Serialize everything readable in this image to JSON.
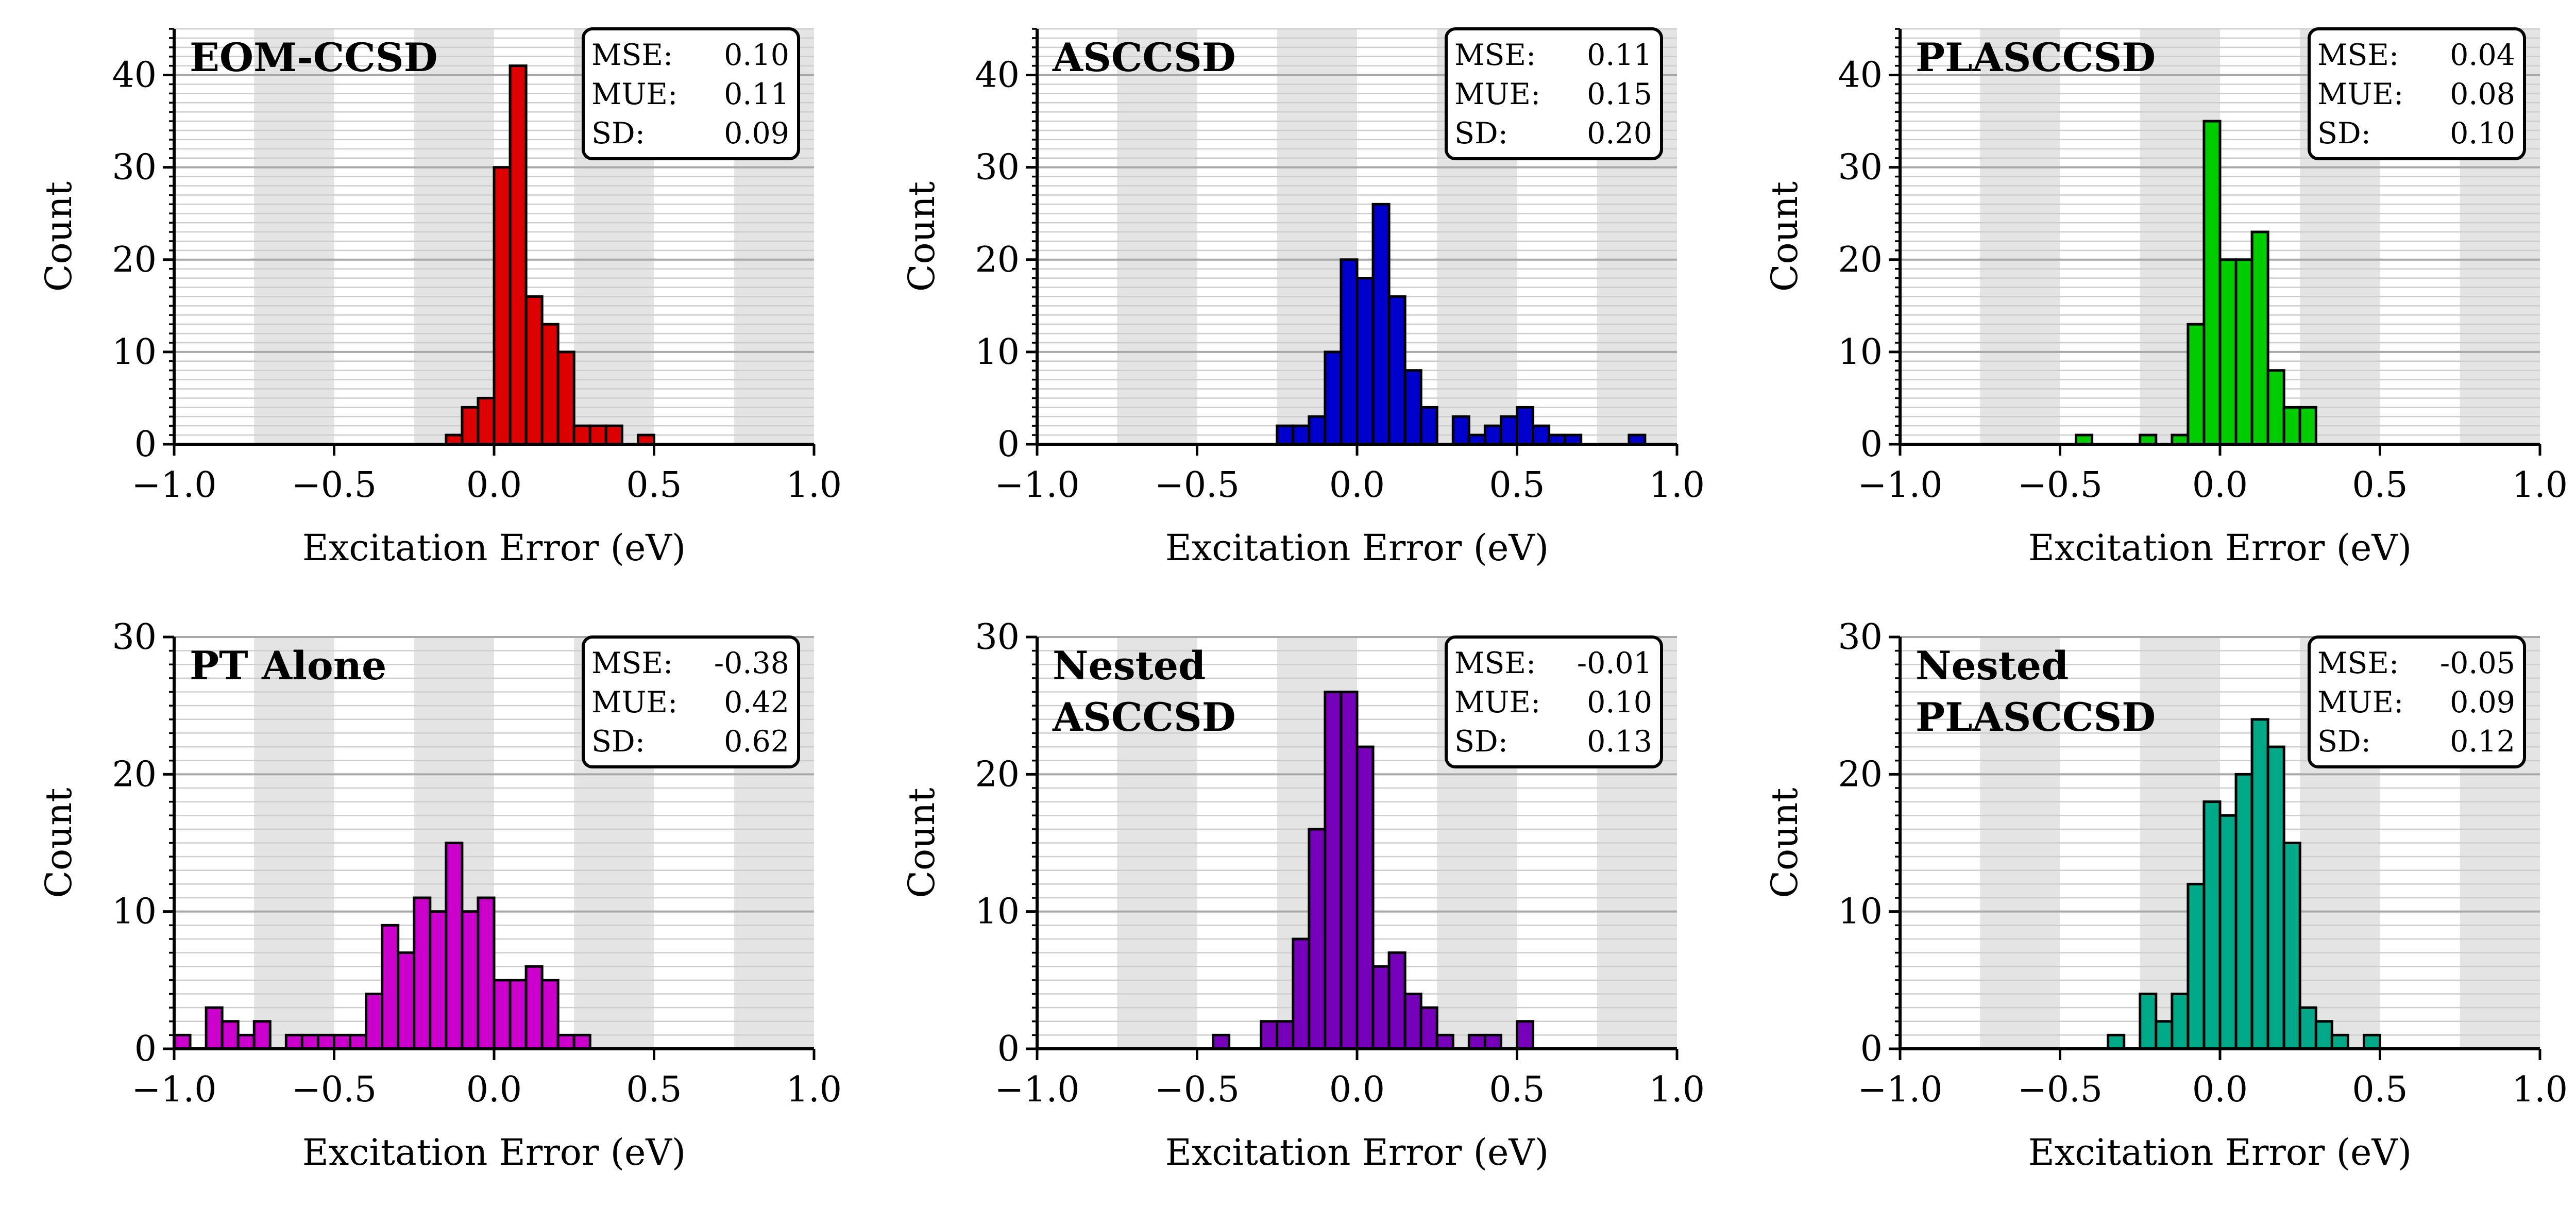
{
  "chart_data": [
    {
      "type": "bar",
      "title": "EOM-CCSD",
      "title_lines": [
        "EOM-CCSD"
      ],
      "xlabel": "Excitation Error (eV)",
      "ylabel": "Count",
      "xlim": [
        -1.0,
        1.0
      ],
      "ylim": [
        0,
        45
      ],
      "xticks": [
        "−1.0",
        "−0.5",
        "0.0",
        "0.5",
        "1.0"
      ],
      "yticks": [
        "0",
        "10",
        "20",
        "30",
        "40"
      ],
      "bin_start": -1.0,
      "bin_width": 0.05,
      "color": "#dd0000",
      "values": [
        0,
        0,
        0,
        0,
        0,
        0,
        0,
        0,
        0,
        0,
        0,
        0,
        0,
        0,
        0,
        0,
        0,
        1,
        4,
        5,
        30,
        41,
        16,
        13,
        10,
        2,
        2,
        2,
        0,
        1,
        0,
        0,
        0,
        0,
        0,
        0,
        0,
        0,
        0,
        0
      ],
      "stats": [
        {
          "label": "MSE:",
          "value": "0.10"
        },
        {
          "label": "MUE:",
          "value": "0.11"
        },
        {
          "label": "SD:",
          "value": "0.09"
        }
      ]
    },
    {
      "type": "bar",
      "title": "ASCCSD",
      "title_lines": [
        "ASCCSD"
      ],
      "xlabel": "Excitation Error (eV)",
      "ylabel": "Count",
      "xlim": [
        -1.0,
        1.0
      ],
      "ylim": [
        0,
        45
      ],
      "xticks": [
        "−1.0",
        "−0.5",
        "0.0",
        "0.5",
        "1.0"
      ],
      "yticks": [
        "0",
        "10",
        "20",
        "30",
        "40"
      ],
      "bin_start": -1.0,
      "bin_width": 0.05,
      "color": "#0000cc",
      "values": [
        0,
        0,
        0,
        0,
        0,
        0,
        0,
        0,
        0,
        0,
        0,
        0,
        0,
        0,
        0,
        2,
        2,
        3,
        10,
        20,
        18,
        26,
        16,
        8,
        4,
        0,
        3,
        1,
        2,
        3,
        4,
        2,
        1,
        1,
        0,
        0,
        0,
        1,
        0,
        0
      ],
      "stats": [
        {
          "label": "MSE:",
          "value": "0.11"
        },
        {
          "label": "MUE:",
          "value": "0.15"
        },
        {
          "label": "SD:",
          "value": "0.20"
        }
      ]
    },
    {
      "type": "bar",
      "title": "PLASCCSD",
      "title_lines": [
        "PLASCCSD"
      ],
      "xlabel": "Excitation Error (eV)",
      "ylabel": "Count",
      "xlim": [
        -1.0,
        1.0
      ],
      "ylim": [
        0,
        45
      ],
      "xticks": [
        "−1.0",
        "−0.5",
        "0.0",
        "0.5",
        "1.0"
      ],
      "yticks": [
        "0",
        "10",
        "20",
        "30",
        "40"
      ],
      "bin_start": -1.0,
      "bin_width": 0.05,
      "color": "#00cc00",
      "values": [
        0,
        0,
        0,
        0,
        0,
        0,
        0,
        0,
        0,
        0,
        0,
        1,
        0,
        0,
        0,
        1,
        0,
        1,
        13,
        35,
        20,
        20,
        23,
        8,
        4,
        4,
        0,
        0,
        0,
        0,
        0,
        0,
        0,
        0,
        0,
        0,
        0,
        0,
        0,
        0
      ],
      "stats": [
        {
          "label": "MSE:",
          "value": "0.04"
        },
        {
          "label": "MUE:",
          "value": "0.08"
        },
        {
          "label": "SD:",
          "value": "0.10"
        }
      ]
    },
    {
      "type": "bar",
      "title": "PT Alone",
      "title_lines": [
        "PT Alone"
      ],
      "xlabel": "Excitation Error (eV)",
      "ylabel": "Count",
      "xlim": [
        -1.0,
        1.0
      ],
      "ylim": [
        0,
        30
      ],
      "xticks": [
        "−1.0",
        "−0.5",
        "0.0",
        "0.5",
        "1.0"
      ],
      "yticks": [
        "0",
        "10",
        "20",
        "30"
      ],
      "bin_start": -1.0,
      "bin_width": 0.05,
      "color": "#cc00cc",
      "values": [
        1,
        0,
        3,
        2,
        1,
        2,
        0,
        1,
        1,
        1,
        1,
        1,
        4,
        9,
        7,
        11,
        10,
        15,
        10,
        11,
        5,
        5,
        6,
        5,
        1,
        1,
        0,
        0,
        0,
        0,
        0,
        0,
        0,
        0,
        0,
        0,
        0,
        0,
        0,
        0
      ],
      "stats": [
        {
          "label": "MSE:",
          "value": "-0.38"
        },
        {
          "label": "MUE:",
          "value": "0.42"
        },
        {
          "label": "SD:",
          "value": "0.62"
        }
      ]
    },
    {
      "type": "bar",
      "title": "Nested ASCCSD",
      "title_lines": [
        "Nested",
        "ASCCSD"
      ],
      "xlabel": "Excitation Error (eV)",
      "ylabel": "Count",
      "xlim": [
        -1.0,
        1.0
      ],
      "ylim": [
        0,
        30
      ],
      "xticks": [
        "−1.0",
        "−0.5",
        "0.0",
        "0.5",
        "1.0"
      ],
      "yticks": [
        "0",
        "10",
        "20",
        "30"
      ],
      "bin_start": -1.0,
      "bin_width": 0.05,
      "color": "#7700bb",
      "values": [
        0,
        0,
        0,
        0,
        0,
        0,
        0,
        0,
        0,
        0,
        0,
        1,
        0,
        0,
        2,
        2,
        8,
        16,
        26,
        26,
        22,
        6,
        7,
        4,
        3,
        1,
        0,
        1,
        1,
        0,
        2,
        0,
        0,
        0,
        0,
        0,
        0,
        0,
        0,
        0
      ],
      "stats": [
        {
          "label": "MSE:",
          "value": "-0.01"
        },
        {
          "label": "MUE:",
          "value": "0.10"
        },
        {
          "label": "SD:",
          "value": "0.13"
        }
      ]
    },
    {
      "type": "bar",
      "title": "Nested PLASCCSD",
      "title_lines": [
        "Nested",
        "PLASCCSD"
      ],
      "xlabel": "Excitation Error (eV)",
      "ylabel": "Count",
      "xlim": [
        -1.0,
        1.0
      ],
      "ylim": [
        0,
        30
      ],
      "xticks": [
        "−1.0",
        "−0.5",
        "0.0",
        "0.5",
        "1.0"
      ],
      "yticks": [
        "0",
        "10",
        "20",
        "30"
      ],
      "bin_start": -1.0,
      "bin_width": 0.05,
      "color": "#00aa88",
      "values": [
        0,
        0,
        0,
        0,
        0,
        0,
        0,
        0,
        0,
        0,
        0,
        0,
        0,
        1,
        0,
        4,
        2,
        4,
        12,
        18,
        17,
        20,
        24,
        22,
        15,
        3,
        2,
        1,
        0,
        1,
        0,
        0,
        0,
        0,
        0,
        0,
        0,
        0,
        0,
        0
      ],
      "stats": [
        {
          "label": "MSE:",
          "value": "-0.05"
        },
        {
          "label": "MUE:",
          "value": "0.09"
        },
        {
          "label": "SD:",
          "value": "0.12"
        }
      ]
    }
  ]
}
